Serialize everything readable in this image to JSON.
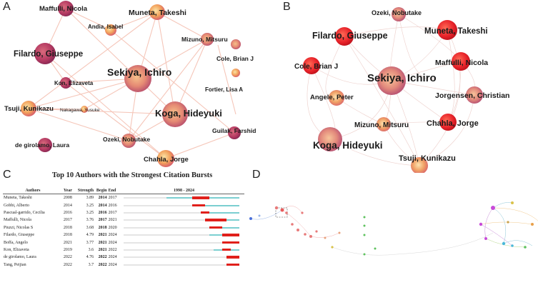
{
  "panels": {
    "A": "A",
    "B": "B",
    "C": "C",
    "D": "D"
  },
  "colors": {
    "node_hot": "#e8232a",
    "node_warm": "#f2a15c",
    "node_purple": "#b43a62",
    "link": "#f3b8a8",
    "burst_bar": "#e0201b",
    "timeline": "#7bcfd1"
  },
  "network_a": {
    "nodes": [
      {
        "label": "Maffulli, Nicola"
      },
      {
        "label": "Andia, Isabel"
      },
      {
        "label": "Muneta, Takeshi"
      },
      {
        "label": "Mizuno, Mitsuru"
      },
      {
        "label": "Filardo, Giuseppe"
      },
      {
        "label": "Cole, Brian J"
      },
      {
        "label": "Sekiya, Ichiro"
      },
      {
        "label": "Kon, Elizaveta"
      },
      {
        "label": "Fortier, Lisa A"
      },
      {
        "label": "Tsuji, Kunikazu"
      },
      {
        "label": "Nakagawa, Yusuke"
      },
      {
        "label": "Koga, Hideyuki"
      },
      {
        "label": "Ozeki, Nobutake"
      },
      {
        "label": "Guilak, Farshid"
      },
      {
        "label": "de girolamo, Laura"
      },
      {
        "label": "Chahla, Jorge"
      }
    ]
  },
  "network_b": {
    "nodes": [
      {
        "label": "Ozeki, Nobutake"
      },
      {
        "label": "Filardo, Giuseppe"
      },
      {
        "label": "Muneta, Takeshi"
      },
      {
        "label": "Cole, Brian J"
      },
      {
        "label": "Sekiya, Ichiro"
      },
      {
        "label": "Maffulli, Nicola"
      },
      {
        "label": "Angele, Peter"
      },
      {
        "label": "Jorgensen, Christian"
      },
      {
        "label": "Mizuno, Mitsuru"
      },
      {
        "label": "Chahla, Jorge"
      },
      {
        "label": "Koga, Hideyuki"
      },
      {
        "label": "Tsuji, Kunikazu"
      }
    ]
  },
  "burst_table": {
    "title": "Top 10 Authors with the Strongest Citation Bursts",
    "headers": {
      "authors": "Authors",
      "year": "Year",
      "strength": "Strength",
      "begin": "Begin",
      "end": "End",
      "range": "1998 - 2024"
    },
    "range_start": 1998,
    "range_end": 2024,
    "rows": [
      {
        "author": "Muneta, Takeshi",
        "year": "2008",
        "strength": "3.89",
        "begin": "2014",
        "end": "2017"
      },
      {
        "author": "Gobbi, Alberto",
        "year": "2014",
        "strength": "3.25",
        "begin": "2014",
        "end": "2016"
      },
      {
        "author": "Pascual-garrido, Cecilia",
        "year": "2016",
        "strength": "3.25",
        "begin": "2016",
        "end": "2017"
      },
      {
        "author": "Maffulli, Nicola",
        "year": "2017",
        "strength": "3.76",
        "begin": "2017",
        "end": "2021"
      },
      {
        "author": "Piuzzi, Nicolas S",
        "year": "2018",
        "strength": "3.68",
        "begin": "2018",
        "end": "2020"
      },
      {
        "author": "Filardo, Giuseppe",
        "year": "2018",
        "strength": "4.79",
        "begin": "2021",
        "end": "2024"
      },
      {
        "author": "Boffa, Angelo",
        "year": "2021",
        "strength": "3.77",
        "begin": "2021",
        "end": "2024"
      },
      {
        "author": "Kon, Elizaveta",
        "year": "2019",
        "strength": "3.6",
        "begin": "2021",
        "end": "2022"
      },
      {
        "author": "de girolamo, Laura",
        "year": "2022",
        "strength": "4.76",
        "begin": "2022",
        "end": "2024"
      },
      {
        "author": "Tang, Peijian",
        "year": "2022",
        "strength": "3.7",
        "begin": "2022",
        "end": "2024"
      }
    ]
  }
}
